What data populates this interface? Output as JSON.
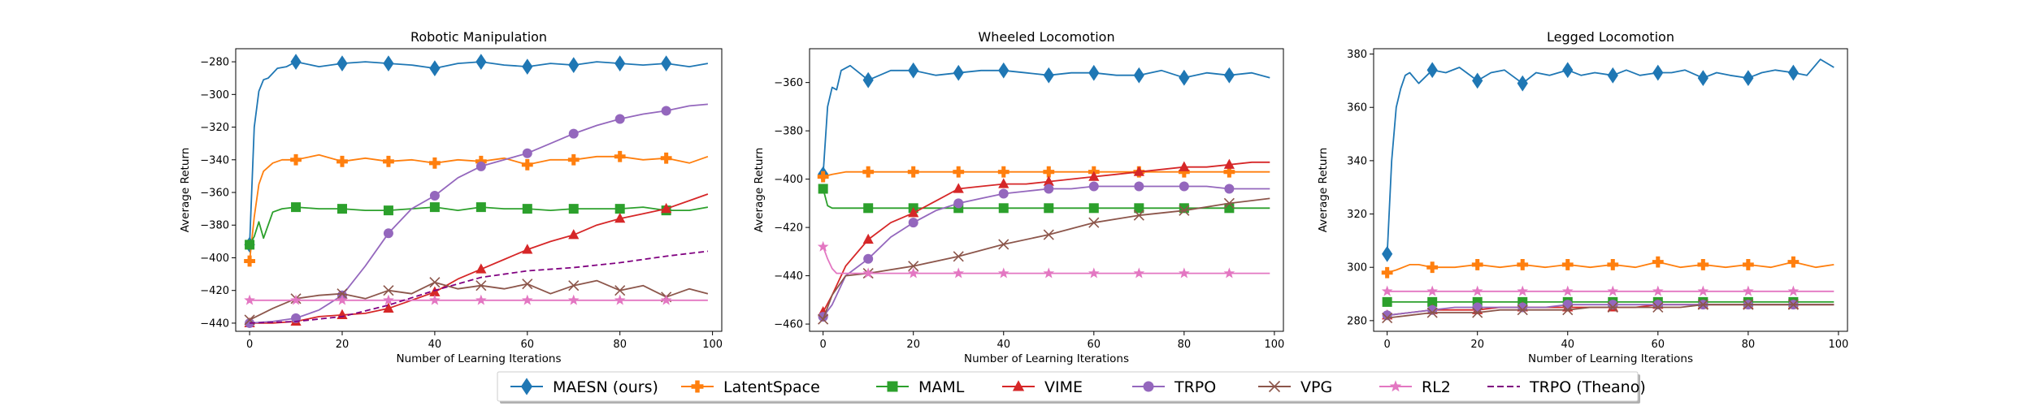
{
  "legend": {
    "items": [
      {
        "label": "MAESN (ours)",
        "color": "#1f77b4",
        "marker": "diamond",
        "dashed": false
      },
      {
        "label": "LatentSpace",
        "color": "#ff7f0e",
        "marker": "plus",
        "dashed": false
      },
      {
        "label": "MAML",
        "color": "#2ca02c",
        "marker": "square",
        "dashed": false
      },
      {
        "label": "VIME",
        "color": "#d62728",
        "marker": "triangle",
        "dashed": false
      },
      {
        "label": "TRPO",
        "color": "#9467bd",
        "marker": "circle",
        "dashed": false
      },
      {
        "label": "VPG",
        "color": "#8c564b",
        "marker": "x",
        "dashed": false
      },
      {
        "label": "RL2",
        "color": "#e377c2",
        "marker": "star",
        "dashed": false
      },
      {
        "label": "TRPO (Theano)",
        "color": "#800080",
        "marker": "none",
        "dashed": true
      }
    ]
  },
  "chart_data": [
    {
      "type": "line",
      "title": "Robotic Manipulation",
      "xlabel": "Number of Learning Iterations",
      "ylabel": "Average Return",
      "xlim": [
        -3,
        102
      ],
      "ylim": [
        -445,
        -272
      ],
      "xticks": [
        0,
        20,
        40,
        60,
        80,
        100
      ],
      "yticks": [
        -440,
        -420,
        -400,
        -380,
        -360,
        -340,
        -320,
        -300,
        -280
      ],
      "grid": false,
      "series": [
        {
          "name": "MAESN (ours)",
          "x": [
            0,
            1,
            2,
            3,
            4,
            6,
            8,
            10,
            15,
            20,
            25,
            30,
            35,
            40,
            45,
            50,
            55,
            60,
            65,
            70,
            75,
            80,
            85,
            90,
            95,
            99
          ],
          "y": [
            -392,
            -320,
            -298,
            -291,
            -290,
            -284,
            -283,
            -280,
            -283,
            -281,
            -280,
            -281,
            -282,
            -284,
            -281,
            -280,
            -282,
            -283,
            -281,
            -282,
            -280,
            -281,
            -282,
            -281,
            -283,
            -281
          ]
        },
        {
          "name": "LatentSpace",
          "x": [
            0,
            1,
            2,
            3,
            5,
            7,
            10,
            15,
            20,
            25,
            30,
            35,
            40,
            45,
            50,
            55,
            60,
            65,
            70,
            75,
            80,
            85,
            90,
            95,
            99
          ],
          "y": [
            -402,
            -375,
            -355,
            -347,
            -342,
            -340,
            -340,
            -337,
            -341,
            -339,
            -341,
            -340,
            -342,
            -340,
            -341,
            -339,
            -343,
            -340,
            -340,
            -338,
            -338,
            -340,
            -339,
            -342,
            -338
          ]
        },
        {
          "name": "MAML",
          "x": [
            0,
            1,
            2,
            3,
            5,
            7,
            10,
            15,
            20,
            25,
            30,
            35,
            40,
            45,
            50,
            55,
            60,
            65,
            70,
            75,
            80,
            85,
            90,
            95,
            99
          ],
          "y": [
            -392,
            -387,
            -378,
            -388,
            -372,
            -370,
            -369,
            -370,
            -370,
            -371,
            -371,
            -370,
            -369,
            -371,
            -369,
            -370,
            -370,
            -371,
            -370,
            -370,
            -370,
            -369,
            -371,
            -371,
            -369
          ]
        },
        {
          "name": "VIME",
          "x": [
            0,
            5,
            10,
            15,
            20,
            25,
            30,
            35,
            40,
            45,
            50,
            55,
            60,
            65,
            70,
            75,
            80,
            85,
            90,
            95,
            99
          ],
          "y": [
            -440,
            -440,
            -439,
            -436,
            -435,
            -434,
            -431,
            -426,
            -421,
            -413,
            -407,
            -401,
            -395,
            -390,
            -386,
            -380,
            -376,
            -373,
            -370,
            -365,
            -361
          ]
        },
        {
          "name": "TRPO",
          "x": [
            0,
            5,
            10,
            15,
            20,
            25,
            30,
            35,
            40,
            45,
            50,
            55,
            60,
            65,
            70,
            75,
            80,
            85,
            90,
            95,
            99
          ],
          "y": [
            -440,
            -439,
            -437,
            -432,
            -423,
            -405,
            -385,
            -370,
            -362,
            -351,
            -344,
            -340,
            -336,
            -330,
            -324,
            -319,
            -315,
            -312,
            -310,
            -307,
            -306
          ]
        },
        {
          "name": "VPG",
          "x": [
            0,
            5,
            10,
            15,
            20,
            25,
            30,
            35,
            40,
            45,
            50,
            55,
            60,
            65,
            70,
            75,
            80,
            85,
            90,
            95,
            99
          ],
          "y": [
            -438,
            -431,
            -425,
            -423,
            -422,
            -425,
            -420,
            -422,
            -415,
            -419,
            -417,
            -419,
            -416,
            -422,
            -417,
            -414,
            -420,
            -417,
            -424,
            -419,
            -422
          ]
        },
        {
          "name": "RL2",
          "x": [
            0,
            10,
            20,
            30,
            40,
            50,
            60,
            70,
            80,
            90,
            99
          ],
          "y": [
            -426,
            -426,
            -426,
            -426,
            -426,
            -426,
            -426,
            -426,
            -426,
            -426,
            -426
          ]
        },
        {
          "name": "TRPO (Theano)",
          "x": [
            0,
            10,
            20,
            30,
            40,
            50,
            60,
            70,
            80,
            90,
            99
          ],
          "y": [
            -440,
            -439,
            -436,
            -429,
            -420,
            -412,
            -408,
            -406,
            -403,
            -399,
            -396
          ]
        }
      ]
    },
    {
      "type": "line",
      "title": "Wheeled Locomotion",
      "xlabel": "Number of Learning Iterations",
      "ylabel": "Average Return",
      "xlim": [
        -3,
        102
      ],
      "ylim": [
        -463,
        -346
      ],
      "xticks": [
        0,
        20,
        40,
        60,
        80,
        100
      ],
      "yticks": [
        -460,
        -440,
        -420,
        -400,
        -380,
        -360
      ],
      "grid": false,
      "series": [
        {
          "name": "MAESN (ours)",
          "x": [
            0,
            1,
            2,
            3,
            4,
            6,
            8,
            10,
            15,
            20,
            25,
            30,
            35,
            40,
            45,
            50,
            55,
            60,
            65,
            70,
            75,
            80,
            85,
            90,
            95,
            99
          ],
          "y": [
            -398,
            -370,
            -362,
            -363,
            -355,
            -353,
            -356,
            -359,
            -355,
            -355,
            -357,
            -356,
            -355,
            -355,
            -356,
            -357,
            -356,
            -356,
            -357,
            -357,
            -355,
            -358,
            -356,
            -357,
            -356,
            -358
          ]
        },
        {
          "name": "LatentSpace",
          "x": [
            0,
            2,
            5,
            10,
            15,
            20,
            25,
            30,
            35,
            40,
            45,
            50,
            55,
            60,
            65,
            70,
            75,
            80,
            85,
            90,
            95,
            99
          ],
          "y": [
            -399,
            -398,
            -397,
            -397,
            -397,
            -397,
            -397,
            -397,
            -397,
            -397,
            -397,
            -397,
            -397,
            -397,
            -397,
            -397,
            -397,
            -397,
            -397,
            -397,
            -397,
            -397
          ]
        },
        {
          "name": "MAML",
          "x": [
            0,
            1,
            2,
            3,
            5,
            10,
            20,
            30,
            40,
            50,
            60,
            70,
            80,
            90,
            99
          ],
          "y": [
            -404,
            -411,
            -412,
            -412,
            -412,
            -412,
            -412,
            -412,
            -412,
            -412,
            -412,
            -412,
            -412,
            -412,
            -412
          ]
        },
        {
          "name": "VIME",
          "x": [
            0,
            2,
            5,
            10,
            15,
            20,
            25,
            30,
            35,
            40,
            45,
            50,
            55,
            60,
            65,
            70,
            75,
            80,
            85,
            90,
            95,
            99
          ],
          "y": [
            -455,
            -448,
            -436,
            -425,
            -418,
            -414,
            -409,
            -404,
            -403,
            -402,
            -402,
            -401,
            -400,
            -399,
            -398,
            -397,
            -396,
            -395,
            -395,
            -394,
            -393,
            -393
          ]
        },
        {
          "name": "TRPO",
          "x": [
            0,
            2,
            5,
            10,
            15,
            20,
            25,
            30,
            35,
            40,
            45,
            50,
            55,
            60,
            65,
            70,
            75,
            80,
            85,
            90,
            95,
            99
          ],
          "y": [
            -457,
            -452,
            -440,
            -433,
            -424,
            -418,
            -413,
            -410,
            -408,
            -406,
            -405,
            -404,
            -404,
            -403,
            -403,
            -403,
            -403,
            -403,
            -403,
            -404,
            -404,
            -404
          ]
        },
        {
          "name": "VPG",
          "x": [
            0,
            2,
            5,
            10,
            20,
            30,
            40,
            50,
            60,
            70,
            80,
            90,
            99
          ],
          "y": [
            -458,
            -448,
            -440,
            -439,
            -436,
            -432,
            -427,
            -423,
            -418,
            -415,
            -413,
            -410,
            -408
          ]
        },
        {
          "name": "RL2",
          "x": [
            0,
            1,
            2,
            3,
            5,
            10,
            20,
            30,
            40,
            50,
            60,
            70,
            80,
            90,
            99
          ],
          "y": [
            -428,
            -433,
            -437,
            -439,
            -439,
            -439,
            -439,
            -439,
            -439,
            -439,
            -439,
            -439,
            -439,
            -439,
            -439
          ]
        }
      ]
    },
    {
      "type": "line",
      "title": "Legged Locomotion",
      "xlabel": "Number of Learning Iterations",
      "ylabel": "Average Return",
      "xlim": [
        -3,
        102
      ],
      "ylim": [
        276,
        382
      ],
      "xticks": [
        0,
        20,
        40,
        60,
        80,
        100
      ],
      "yticks": [
        280,
        300,
        320,
        340,
        360,
        380
      ],
      "grid": false,
      "series": [
        {
          "name": "MAESN (ours)",
          "x": [
            0,
            1,
            2,
            3,
            4,
            5,
            7,
            10,
            13,
            16,
            20,
            23,
            26,
            30,
            33,
            36,
            40,
            43,
            46,
            50,
            53,
            56,
            60,
            63,
            66,
            70,
            73,
            76,
            80,
            83,
            86,
            90,
            93,
            96,
            99
          ],
          "y": [
            305,
            340,
            360,
            367,
            372,
            373,
            369,
            374,
            373,
            375,
            370,
            373,
            374,
            369,
            373,
            372,
            374,
            372,
            373,
            372,
            374,
            372,
            373,
            373,
            374,
            371,
            373,
            372,
            371,
            373,
            374,
            373,
            372,
            378,
            375
          ]
        },
        {
          "name": "LatentSpace",
          "x": [
            0,
            2,
            5,
            7,
            10,
            15,
            20,
            25,
            30,
            35,
            40,
            45,
            50,
            55,
            60,
            65,
            70,
            75,
            80,
            85,
            90,
            95,
            99
          ],
          "y": [
            298,
            299,
            301,
            301,
            300,
            300,
            301,
            300,
            301,
            300,
            301,
            300,
            301,
            300,
            302,
            300,
            301,
            300,
            301,
            300,
            302,
            300,
            301
          ]
        },
        {
          "name": "MAML",
          "x": [
            0,
            1,
            2,
            5,
            10,
            20,
            30,
            40,
            50,
            60,
            70,
            80,
            90,
            99
          ],
          "y": [
            287,
            287,
            287,
            287,
            287,
            287,
            287,
            287,
            287,
            287,
            287,
            287,
            287,
            287
          ]
        },
        {
          "name": "VIME",
          "x": [
            0,
            5,
            10,
            15,
            20,
            25,
            30,
            35,
            40,
            45,
            50,
            55,
            60,
            65,
            70,
            75,
            80,
            85,
            90,
            95,
            99
          ],
          "y": [
            282,
            283,
            284,
            284,
            284,
            285,
            285,
            285,
            285,
            285,
            285,
            285,
            286,
            286,
            286,
            286,
            286,
            286,
            286,
            286,
            286
          ]
        },
        {
          "name": "TRPO",
          "x": [
            0,
            5,
            10,
            15,
            20,
            25,
            30,
            35,
            40,
            45,
            50,
            55,
            60,
            65,
            70,
            75,
            80,
            85,
            90,
            95,
            99
          ],
          "y": [
            282,
            283,
            284,
            285,
            285,
            285,
            285,
            285,
            286,
            286,
            286,
            286,
            286,
            286,
            286,
            286,
            286,
            286,
            286,
            286,
            286
          ]
        },
        {
          "name": "VPG",
          "x": [
            0,
            5,
            10,
            15,
            20,
            25,
            30,
            35,
            40,
            45,
            50,
            55,
            60,
            65,
            70,
            75,
            80,
            85,
            90,
            95,
            99
          ],
          "y": [
            281,
            282,
            283,
            283,
            283,
            284,
            284,
            284,
            284,
            285,
            285,
            285,
            285,
            285,
            286,
            286,
            286,
            286,
            286,
            286,
            286
          ]
        },
        {
          "name": "RL2",
          "x": [
            0,
            10,
            20,
            30,
            40,
            50,
            60,
            70,
            80,
            90,
            99
          ],
          "y": [
            291,
            291,
            291,
            291,
            291,
            291,
            291,
            291,
            291,
            291,
            291
          ]
        }
      ]
    }
  ]
}
